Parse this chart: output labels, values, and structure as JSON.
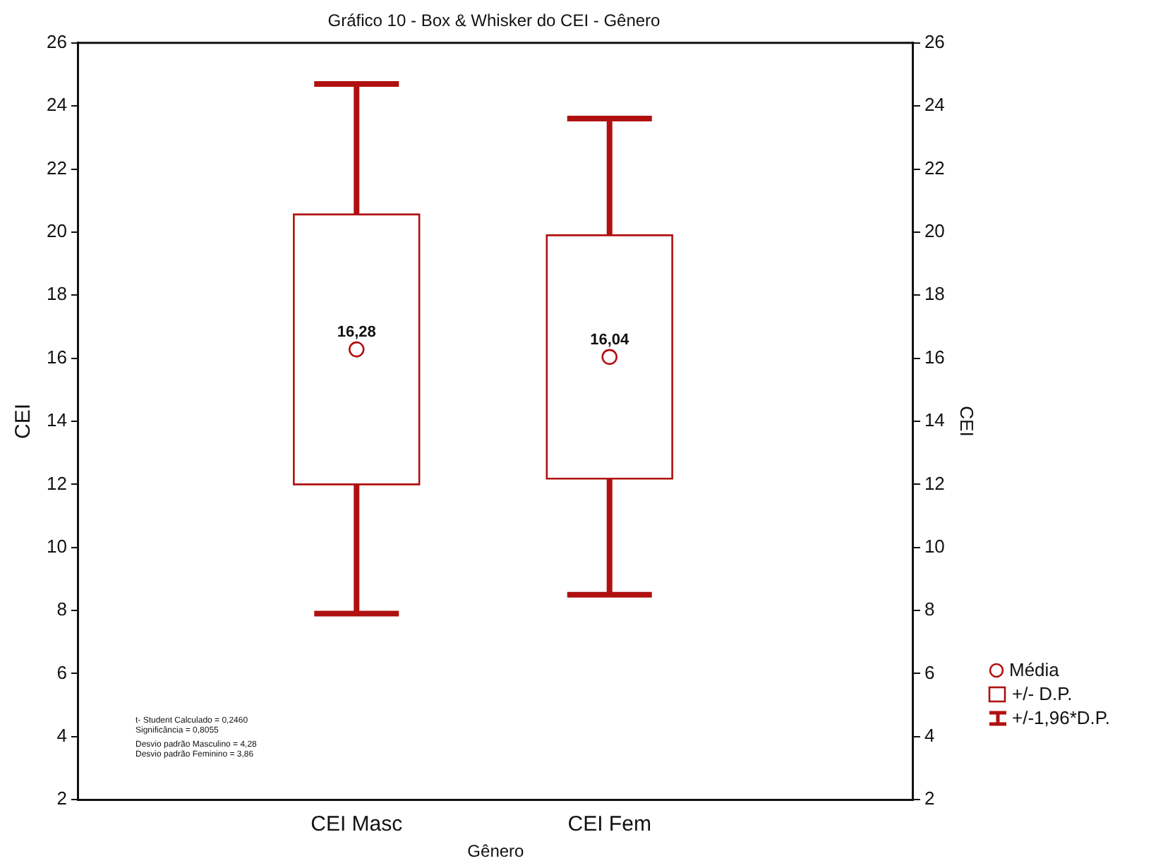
{
  "chart_data": {
    "type": "box",
    "title": "Gráfico 10 - Box & Whisker do CEI - Gênero",
    "xlabel": "Gênero",
    "ylabel": "CEI",
    "y2label": "CEI",
    "categories": [
      "CEI Masc",
      "CEI Fem"
    ],
    "boxes": [
      {
        "low": 7.9,
        "q1": 12.0,
        "median": 16.28,
        "q3": 20.56,
        "high": 24.7
      },
      {
        "low": 8.5,
        "q1": 12.18,
        "median": 16.04,
        "q3": 19.9,
        "high": 23.6
      }
    ],
    "value_labels": [
      "16,28",
      "16,04"
    ],
    "color": "#b01010",
    "marker": "circle",
    "grid": false,
    "ylim": [
      2,
      26
    ],
    "yticks": [
      2,
      4,
      6,
      8,
      10,
      12,
      14,
      16,
      18,
      20,
      22,
      24,
      26
    ],
    "y2lim": [
      2,
      26
    ],
    "y2ticks": [
      2,
      4,
      6,
      8,
      10,
      12,
      14,
      16,
      18,
      20,
      22,
      24,
      26
    ],
    "annotations": [
      "t- Student Calculado = 0,2460",
      "Significância = 0,8055",
      "Desvio padrão Masculino = 4,28",
      "Desvio padrão Feminino = 3,86",
      "Média",
      "+/- D.P.",
      "+/-1,96*D.P."
    ]
  }
}
